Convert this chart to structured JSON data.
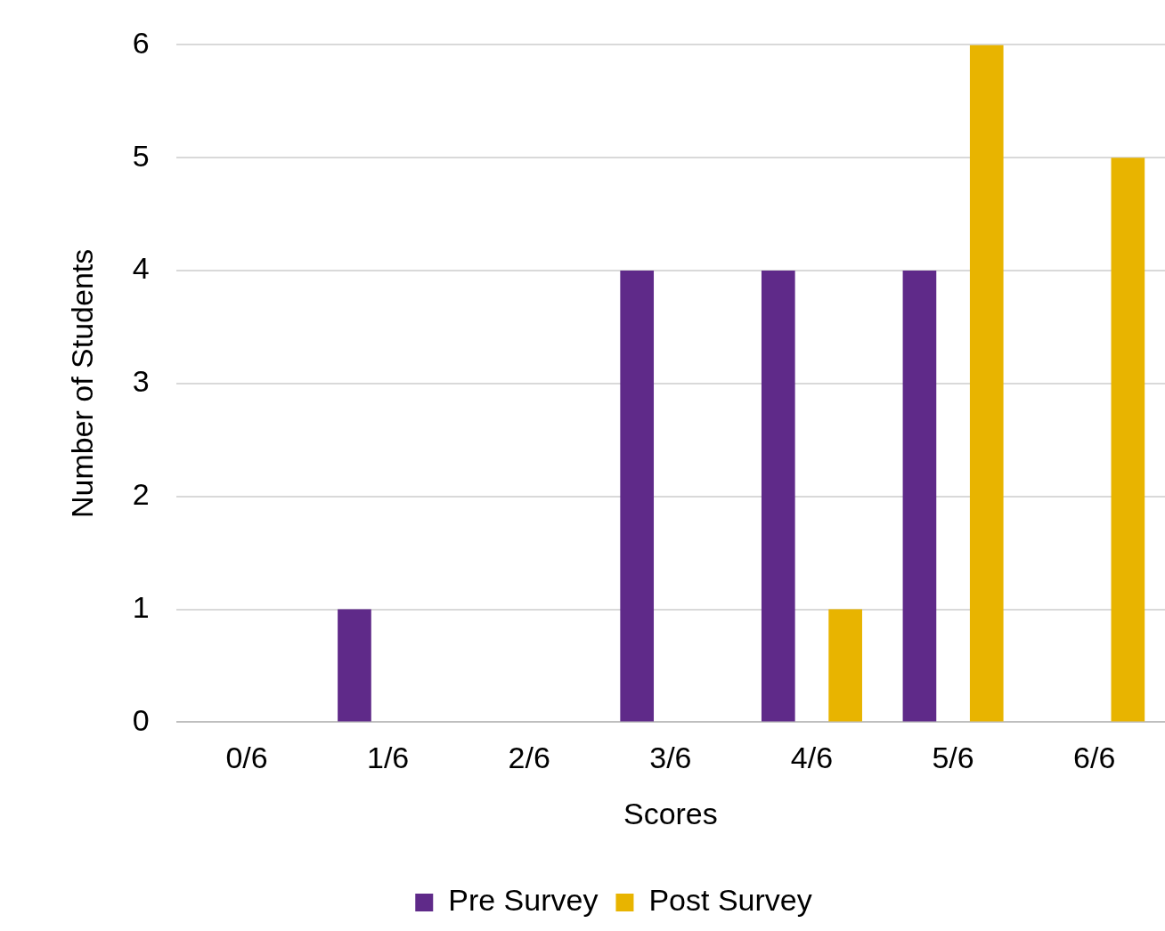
{
  "chart_data": {
    "type": "bar",
    "xlabel": "Scores",
    "ylabel": "Number of Students",
    "categories": [
      "0/6",
      "1/6",
      "2/6",
      "3/6",
      "4/6",
      "5/6",
      "6/6"
    ],
    "series": [
      {
        "name": "Pre Survey",
        "color": "#5f2a89",
        "values": [
          0,
          1,
          0,
          4,
          4,
          4,
          0
        ]
      },
      {
        "name": "Post Survey",
        "color": "#e8b400",
        "values": [
          0,
          0,
          0,
          0,
          1,
          6,
          5
        ]
      }
    ],
    "ylim": [
      0,
      6
    ],
    "yticks": [
      0,
      1,
      2,
      3,
      4,
      5,
      6
    ],
    "grid": "y",
    "legend": "bottom"
  }
}
